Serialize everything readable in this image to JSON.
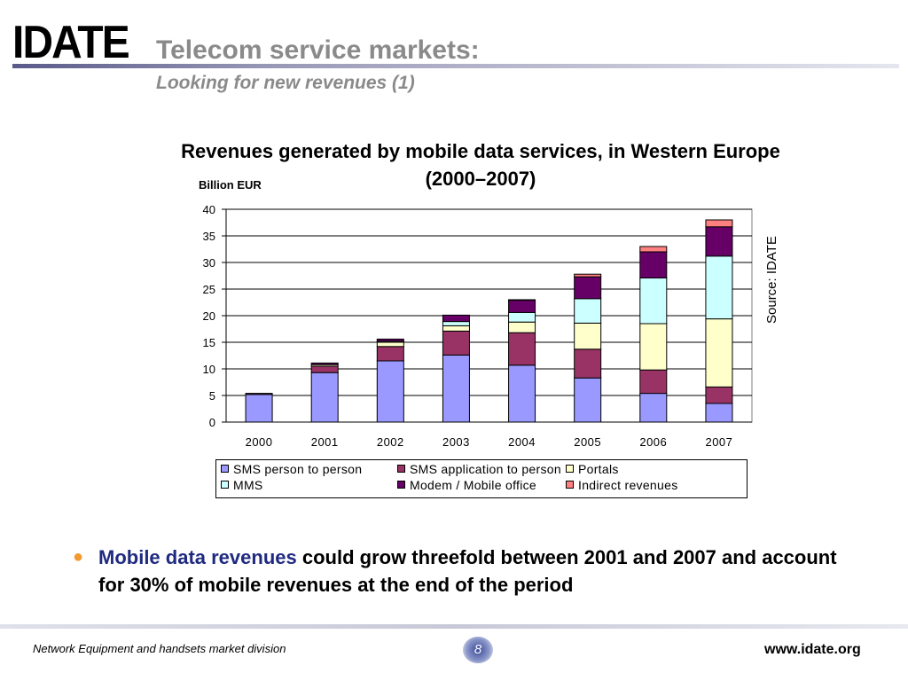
{
  "header": {
    "logo_text": "IDATE",
    "title": "Telecom service markets:",
    "subtitle": "Looking for new revenues (1)"
  },
  "chart_data": {
    "type": "bar",
    "stacked": true,
    "title": "Revenues generated by mobile data services, in Western Europe (2000–2007)",
    "ylabel": "Billion EUR",
    "xlabel": "",
    "source": "Source: IDATE",
    "ylim": [
      0,
      40
    ],
    "yticks": [
      0,
      5,
      10,
      15,
      20,
      25,
      30,
      35,
      40
    ],
    "grid": true,
    "legend_position": "bottom",
    "categories": [
      "2000",
      "2001",
      "2002",
      "2003",
      "2004",
      "2005",
      "2006",
      "2007"
    ],
    "series": [
      {
        "name": "SMS person to person",
        "color": "#9999ff",
        "values": [
          5.2,
          9.3,
          11.5,
          12.6,
          10.7,
          8.3,
          5.4,
          3.5
        ]
      },
      {
        "name": "SMS application to person",
        "color": "#993366",
        "values": [
          0.2,
          1.2,
          2.7,
          4.5,
          6.1,
          5.4,
          4.4,
          3.1
        ]
      },
      {
        "name": "Portals",
        "color": "#ffffcc",
        "values": [
          0,
          0.3,
          0.8,
          1.0,
          2.0,
          4.9,
          8.7,
          12.8
        ]
      },
      {
        "name": "MMS",
        "color": "#ccffff",
        "values": [
          0,
          0,
          0.2,
          0.8,
          1.8,
          4.6,
          8.6,
          11.8
        ]
      },
      {
        "name": "Modem / Mobile office",
        "color": "#660066",
        "values": [
          0,
          0.3,
          0.4,
          1.2,
          2.3,
          4.1,
          4.9,
          5.5
        ]
      },
      {
        "name": "Indirect revenues",
        "color": "#ff8080",
        "values": [
          0,
          0,
          0,
          0,
          0.1,
          0.5,
          1.0,
          1.3
        ]
      }
    ]
  },
  "bullet": {
    "highlight": "Mobile data revenues",
    "text": " could grow threefold between 2001 and 2007 and account for 30% of mobile revenues at the end of the period"
  },
  "footer": {
    "left": "Network Equipment and handsets market division",
    "page_number": "8",
    "right": "www.idate.org"
  }
}
